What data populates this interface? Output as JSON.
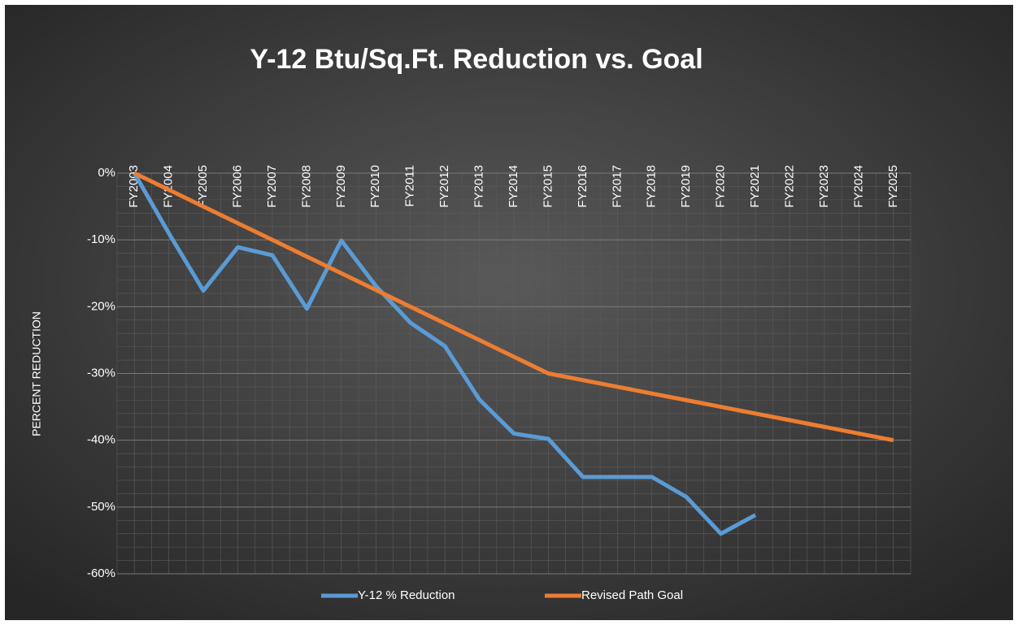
{
  "chart_data": {
    "type": "line",
    "title": "Y-12 Btu/Sq.Ft. Reduction vs. Goal",
    "y_axis_label": "PERCENT REDUCTION",
    "categories": [
      "FY2003",
      "FY2004",
      "FY2005",
      "FY2006",
      "FY2007",
      "FY2008",
      "FY2009",
      "FY2010",
      "FY2011",
      "FY2012",
      "FY2013",
      "FY2014",
      "FY2015",
      "FY2016",
      "FY2017",
      "FY2018",
      "FY2019",
      "FY2020",
      "FY2021",
      "FY2022",
      "FY2023",
      "FY2024",
      "FY2025"
    ],
    "series": [
      {
        "name": "Y-12 % Reduction",
        "color": "#5b9bd5",
        "values": [
          0,
          -9,
          -17.6,
          -11.1,
          -12.3,
          -20.3,
          -10.1,
          -16.9,
          -22.4,
          -25.9,
          -33.9,
          -39,
          -39.8,
          -45.5,
          -45.5,
          -45.5,
          -48.5,
          -54,
          -51.2,
          null,
          null,
          null,
          null
        ]
      },
      {
        "name": "Revised Path Goal",
        "color": "#ed7d31",
        "values": [
          0,
          -2.5,
          -5,
          -7.5,
          -10,
          -12.5,
          -15,
          -17.5,
          -20,
          -22.5,
          -25,
          -27.5,
          -30,
          -31,
          -32,
          -33,
          -34,
          -35,
          -36,
          -37,
          -38,
          -39,
          -40
        ]
      }
    ],
    "ylim": [
      -60,
      0
    ],
    "yticks": [
      {
        "value": 0,
        "label": "0%"
      },
      {
        "value": -10,
        "label": "-10%"
      },
      {
        "value": -20,
        "label": "-20%"
      },
      {
        "value": -30,
        "label": "-30%"
      },
      {
        "value": -40,
        "label": "-40%"
      },
      {
        "value": -50,
        "label": "-50%"
      },
      {
        "value": -60,
        "label": "-60%"
      }
    ],
    "grid": true,
    "legend": "bottom"
  }
}
